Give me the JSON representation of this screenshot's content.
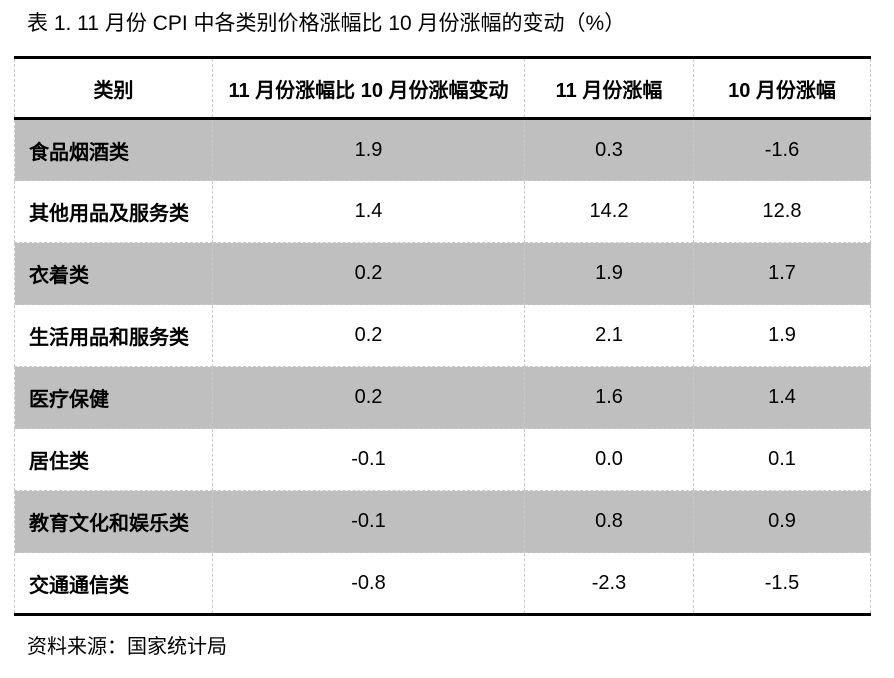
{
  "page": {
    "title": "表 1. 11 月份 CPI 中各类别价格涨幅比 10 月份涨幅的变动（%）",
    "source_note": "资料来源：国家统计局"
  },
  "table": {
    "headers": [
      "类别",
      "11 月份涨幅比 10 月份涨幅变动",
      "11 月份涨幅",
      "10 月份涨幅"
    ],
    "rows": [
      {
        "category": "食品烟酒类",
        "change_vs_oct": "1.9",
        "nov": "0.3",
        "oct": "-1.6"
      },
      {
        "category": "其他用品及服务类",
        "change_vs_oct": "1.4",
        "nov": "14.2",
        "oct": "12.8"
      },
      {
        "category": "衣着类",
        "change_vs_oct": "0.2",
        "nov": "1.9",
        "oct": "1.7"
      },
      {
        "category": "生活用品和服务类",
        "change_vs_oct": "0.2",
        "nov": "2.1",
        "oct": "1.9"
      },
      {
        "category": "医疗保健",
        "change_vs_oct": "0.2",
        "nov": "1.6",
        "oct": "1.4"
      },
      {
        "category": "居住类",
        "change_vs_oct": "-0.1",
        "nov": "0.0",
        "oct": "0.1"
      },
      {
        "category": "教育文化和娱乐类",
        "change_vs_oct": "-0.1",
        "nov": "0.8",
        "oct": "0.9"
      },
      {
        "category": "交通通信类",
        "change_vs_oct": "-0.8",
        "nov": "-2.3",
        "oct": "-1.5"
      }
    ]
  },
  "colors": {
    "row_shading": "#bfbfbf",
    "table_border": "#000000",
    "grid_dashed": "#c9c9c9",
    "text": "#000000",
    "background": "#ffffff"
  },
  "chart_data": {
    "type": "table",
    "title": "表 1. 11 月份 CPI 中各类别价格涨幅比 10 月份涨幅的变动（%）",
    "columns": [
      "类别",
      "11 月份涨幅比 10 月份涨幅变动",
      "11 月份涨幅",
      "10 月份涨幅"
    ],
    "categories": [
      "食品烟酒类",
      "其他用品及服务类",
      "衣着类",
      "生活用品和服务类",
      "医疗保健",
      "居住类",
      "教育文化和娱乐类",
      "交通通信类"
    ],
    "series": [
      {
        "name": "11 月份涨幅比 10 月份涨幅变动",
        "values": [
          1.9,
          1.4,
          0.2,
          0.2,
          0.2,
          -0.1,
          -0.1,
          -0.8
        ]
      },
      {
        "name": "11 月份涨幅",
        "values": [
          0.3,
          14.2,
          1.9,
          2.1,
          1.6,
          0.0,
          0.8,
          -2.3
        ]
      },
      {
        "name": "10 月份涨幅",
        "values": [
          -1.6,
          12.8,
          1.7,
          1.9,
          1.4,
          0.1,
          0.9,
          -1.5
        ]
      }
    ],
    "source": "资料来源：国家统计局"
  }
}
